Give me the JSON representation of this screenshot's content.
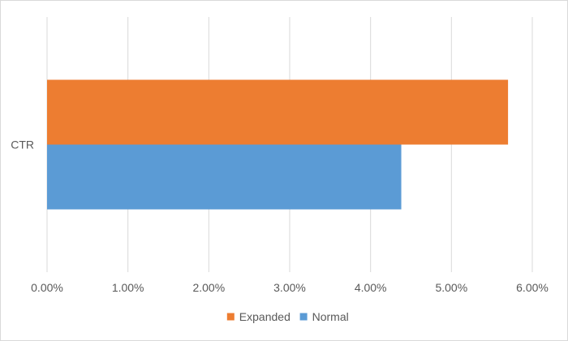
{
  "chart_data": {
    "type": "bar",
    "orientation": "horizontal",
    "categories": [
      "CTR"
    ],
    "series": [
      {
        "name": "Expanded",
        "values": [
          0.057
        ],
        "color": "#ED7D31"
      },
      {
        "name": "Normal",
        "values": [
          0.0438
        ],
        "color": "#5B9BD5"
      }
    ],
    "title": "",
    "xlabel": "",
    "ylabel": "",
    "xlim": [
      0,
      0.06
    ],
    "x_ticks": [
      "0.00%",
      "1.00%",
      "2.00%",
      "3.00%",
      "4.00%",
      "5.00%",
      "6.00%"
    ],
    "grid": "vertical",
    "legend_position": "bottom",
    "gridline_color": "#d9d9d9",
    "text_color": "#595959"
  }
}
